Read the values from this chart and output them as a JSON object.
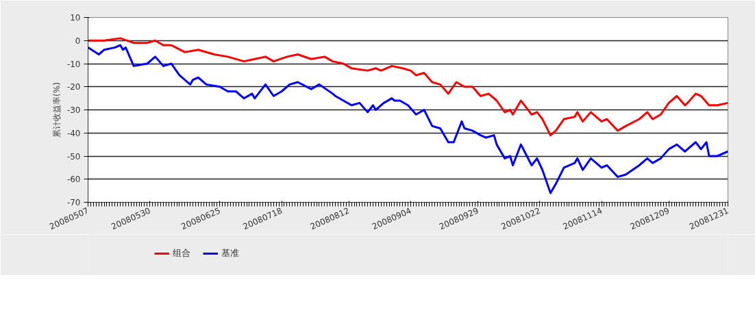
{
  "chart_data": {
    "type": "line",
    "ylabel": "累计收益率(%)",
    "xlim": [
      "2008-05-07",
      "2008-12-31"
    ],
    "xticks": [
      {
        "value": "2008-05-07",
        "label": "20080507"
      },
      {
        "value": "2008-05-30",
        "label": "20080530"
      },
      {
        "value": "2008-06-25",
        "label": "20080625"
      },
      {
        "value": "2008-07-18",
        "label": "20080718"
      },
      {
        "value": "2008-08-12",
        "label": "20080812"
      },
      {
        "value": "2008-09-04",
        "label": "20080904"
      },
      {
        "value": "2008-09-29",
        "label": "20080929"
      },
      {
        "value": "2008-10-22",
        "label": "20081022"
      },
      {
        "value": "2008-11-14",
        "label": "20081114"
      },
      {
        "value": "2008-12-09",
        "label": "20081209"
      },
      {
        "value": "2008-12-31",
        "label": "20081231"
      }
    ],
    "ylim": [
      -70,
      10
    ],
    "yticks": [
      -70,
      -60,
      -50,
      -40,
      -30,
      -20,
      -10,
      0,
      10
    ],
    "grid": "y",
    "legend": "bottom",
    "line_style": "solid",
    "marker": "none",
    "series": [
      {
        "name": "组合",
        "color": "#ff0000",
        "x": [
          "2008-05-07",
          "2008-05-13",
          "2008-05-19",
          "2008-05-24",
          "2008-05-29",
          "2008-06-01",
          "2008-06-04",
          "2008-06-07",
          "2008-06-12",
          "2008-06-17",
          "2008-06-23",
          "2008-06-28",
          "2008-07-04",
          "2008-07-08",
          "2008-07-12",
          "2008-07-15",
          "2008-07-20",
          "2008-07-24",
          "2008-07-29",
          "2008-08-03",
          "2008-08-06",
          "2008-08-10",
          "2008-08-13",
          "2008-08-19",
          "2008-08-22",
          "2008-08-24",
          "2008-08-28",
          "2008-09-01",
          "2008-09-04",
          "2008-09-06",
          "2008-09-09",
          "2008-09-12",
          "2008-09-15",
          "2008-09-18",
          "2008-09-21",
          "2008-09-24",
          "2008-09-27",
          "2008-09-30",
          "2008-10-03",
          "2008-10-06",
          "2008-10-09",
          "2008-10-11",
          "2008-10-12",
          "2008-10-15",
          "2008-10-19",
          "2008-10-21",
          "2008-10-23",
          "2008-10-26",
          "2008-10-28",
          "2008-10-31",
          "2008-11-04",
          "2008-11-05",
          "2008-11-07",
          "2008-11-10",
          "2008-11-14",
          "2008-11-16",
          "2008-11-20",
          "2008-11-23",
          "2008-11-28",
          "2008-12-01",
          "2008-12-03",
          "2008-12-06",
          "2008-12-09",
          "2008-12-12",
          "2008-12-15",
          "2008-12-16",
          "2008-12-19",
          "2008-12-21",
          "2008-12-24",
          "2008-12-27",
          "2008-12-31"
        ],
        "values": [
          0,
          0,
          1,
          -1,
          -1,
          0,
          -2,
          -2,
          -5,
          -4,
          -6,
          -7,
          -9,
          -8,
          -7,
          -9,
          -7,
          -6,
          -8,
          -7,
          -9,
          -10,
          -12,
          -13,
          -12,
          -13,
          -11,
          -12,
          -13,
          -15,
          -14,
          -18,
          -19,
          -23,
          -18,
          -20,
          -20,
          -24,
          -23,
          -26,
          -31,
          -30,
          -32,
          -26,
          -32,
          -31,
          -34,
          -41,
          -39,
          -34,
          -33,
          -31,
          -35,
          -31,
          -35,
          -34,
          -39,
          -37,
          -34,
          -31,
          -34,
          -32,
          -27,
          -24,
          -28,
          -27,
          -23,
          -24,
          -28,
          -28,
          -27
        ]
      },
      {
        "name": "基准",
        "color": "#0000ff",
        "x": [
          "2008-05-07",
          "2008-05-11",
          "2008-05-13",
          "2008-05-17",
          "2008-05-19",
          "2008-05-20",
          "2008-05-21",
          "2008-05-24",
          "2008-05-29",
          "2008-06-01",
          "2008-06-04",
          "2008-06-07",
          "2008-06-10",
          "2008-06-14",
          "2008-06-15",
          "2008-06-17",
          "2008-06-20",
          "2008-06-25",
          "2008-06-28",
          "2008-07-01",
          "2008-07-04",
          "2008-07-07",
          "2008-07-08",
          "2008-07-12",
          "2008-07-15",
          "2008-07-18",
          "2008-07-21",
          "2008-07-24",
          "2008-07-29",
          "2008-08-01",
          "2008-08-06",
          "2008-08-07",
          "2008-08-13",
          "2008-08-16",
          "2008-08-19",
          "2008-08-21",
          "2008-08-22",
          "2008-08-25",
          "2008-08-28",
          "2008-08-29",
          "2008-08-31",
          "2008-09-03",
          "2008-09-06",
          "2008-09-09",
          "2008-09-12",
          "2008-09-15",
          "2008-09-18",
          "2008-09-20",
          "2008-09-23",
          "2008-09-24",
          "2008-09-27",
          "2008-09-30",
          "2008-10-02",
          "2008-10-05",
          "2008-10-06",
          "2008-10-09",
          "2008-10-11",
          "2008-10-12",
          "2008-10-15",
          "2008-10-19",
          "2008-10-21",
          "2008-10-23",
          "2008-10-26",
          "2008-10-28",
          "2008-10-31",
          "2008-11-04",
          "2008-11-05",
          "2008-11-07",
          "2008-11-10",
          "2008-11-14",
          "2008-11-16",
          "2008-11-20",
          "2008-11-23",
          "2008-11-28",
          "2008-12-01",
          "2008-12-03",
          "2008-12-06",
          "2008-12-09",
          "2008-12-12",
          "2008-12-15",
          "2008-12-16",
          "2008-12-19",
          "2008-12-21",
          "2008-12-23",
          "2008-12-24",
          "2008-12-27",
          "2008-12-31"
        ],
        "values": [
          -3,
          -6,
          -4,
          -3,
          -2,
          -4,
          -3,
          -11,
          -10,
          -7,
          -11,
          -10,
          -15,
          -19,
          -17,
          -16,
          -19,
          -20,
          -22,
          -22,
          -25,
          -23,
          -25,
          -19,
          -24,
          -22,
          -19,
          -18,
          -21,
          -19,
          -23,
          -24,
          -28,
          -27,
          -31,
          -28,
          -30,
          -27,
          -25,
          -26,
          -26,
          -28,
          -32,
          -30,
          -37,
          -38,
          -44,
          -44,
          -35,
          -38,
          -39,
          -41,
          -42,
          -41,
          -45,
          -51,
          -50,
          -54,
          -45,
          -54,
          -51,
          -56,
          -66,
          -62,
          -55,
          -53,
          -51,
          -56,
          -51,
          -55,
          -54,
          -59,
          -58,
          -54,
          -51,
          -53,
          -51,
          -47,
          -45,
          -48,
          -47,
          -44,
          -47,
          -44,
          -50,
          -50,
          -48
        ]
      }
    ]
  }
}
